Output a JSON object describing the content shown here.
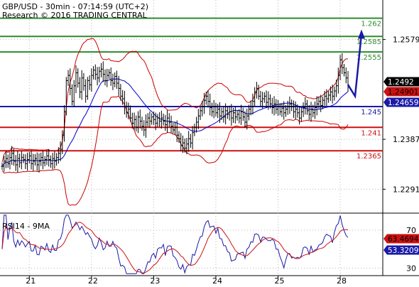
{
  "header": {
    "line1": "GBP/USD - 30min - 07:14:59 (UTC+2)",
    "line2": "Research © 2016 TRADING CENTRAL"
  },
  "colors": {
    "price": "#000000",
    "bollinger": "#cc0000",
    "moving_average": "#0000cc",
    "resistance_green": "#2e8b2e",
    "support_blue": "#1a1aa6",
    "support_red": "#cc1111",
    "forecast_arrow": "#1a1aa6",
    "rsi_line": "#1a1aa6",
    "rsi_signal": "#cc1111",
    "grid": "#b8b8b8"
  },
  "chart_data": [
    {
      "type": "candlestick",
      "pair": "GBP/USD",
      "timeframe": "30min",
      "ylim": [
        1.2245,
        1.2655
      ],
      "y_ticks": [
        "1.2579",
        "1.2387",
        "1.2291"
      ],
      "x_labels": [
        "21",
        "22",
        "23",
        "24",
        "25",
        "28"
      ],
      "grid": true,
      "levels": [
        {
          "value": 1.262,
          "label": "1.262",
          "color": "#2e8b2e"
        },
        {
          "value": 1.2585,
          "label": "1.2585",
          "color": "#2e8b2e"
        },
        {
          "value": 1.2555,
          "label": "1.2555",
          "color": "#2e8b2e"
        },
        {
          "value": 1.245,
          "label": "1.245",
          "color": "#1a1aa6"
        },
        {
          "value": 1.241,
          "label": "1.241",
          "color": "#cc1111"
        },
        {
          "value": 1.2365,
          "label": "1.2365",
          "color": "#cc1111"
        }
      ],
      "markers": [
        {
          "value": 1.2492,
          "label": "1.2492",
          "bg": "#000000",
          "fg": "#ffffff"
        },
        {
          "value": 1.24901,
          "label": "1.24901",
          "bg": "#cc1111",
          "fg": "#000000"
        },
        {
          "value": 1.24659,
          "label": "1.24659",
          "bg": "#1a1aa6",
          "fg": "#ffffff"
        }
      ],
      "close_prices": [
        1.2335,
        1.2345,
        1.235,
        1.234,
        1.2352,
        1.236,
        1.2345,
        1.2338,
        1.235,
        1.2342,
        1.2352,
        1.2348,
        1.234,
        1.2348,
        1.2355,
        1.234,
        1.2345,
        1.235,
        1.2338,
        1.2345,
        1.2352,
        1.2342,
        1.2348,
        1.2355,
        1.2348,
        1.234,
        1.235,
        1.2345,
        1.2352,
        1.236,
        1.2368,
        1.2395,
        1.244,
        1.25,
        1.251,
        1.2485,
        1.246,
        1.249,
        1.2515,
        1.2495,
        1.2478,
        1.2505,
        1.249,
        1.247,
        1.25,
        1.2492,
        1.251,
        1.252,
        1.2512,
        1.2505,
        1.2518,
        1.2522,
        1.2512,
        1.25,
        1.251,
        1.2515,
        1.25,
        1.2495,
        1.2508,
        1.2495,
        1.2485,
        1.247,
        1.2465,
        1.245,
        1.2438,
        1.2445,
        1.2428,
        1.2418,
        1.2425,
        1.241,
        1.243,
        1.2422,
        1.2412,
        1.2405,
        1.242,
        1.2428,
        1.2422,
        1.243,
        1.2425,
        1.2418,
        1.2428,
        1.2422,
        1.2428,
        1.2422,
        1.2415,
        1.2428,
        1.242,
        1.2412,
        1.2405,
        1.241,
        1.2395,
        1.2388,
        1.2375,
        1.238,
        1.237,
        1.2378,
        1.2388,
        1.238,
        1.24,
        1.241,
        1.242,
        1.2432,
        1.2442,
        1.245,
        1.2462,
        1.247,
        1.246,
        1.2448,
        1.244,
        1.245,
        1.2438,
        1.2445,
        1.2432,
        1.244,
        1.243,
        1.2442,
        1.2435,
        1.244,
        1.2428,
        1.2438,
        1.243,
        1.2435,
        1.2428,
        1.244,
        1.243,
        1.242,
        1.2432,
        1.2445,
        1.245,
        1.246,
        1.2478,
        1.2485,
        1.247,
        1.246,
        1.2465,
        1.247,
        1.2458,
        1.2465,
        1.2455,
        1.2448,
        1.2455,
        1.2445,
        1.245,
        1.244,
        1.2447,
        1.2438,
        1.2445,
        1.245,
        1.2455,
        1.245,
        1.244,
        1.2445,
        1.2438,
        1.2428,
        1.244,
        1.2448,
        1.2455,
        1.2442,
        1.2435,
        1.2445,
        1.2438,
        1.2448,
        1.2455,
        1.246,
        1.2452,
        1.2462,
        1.247,
        1.2465,
        1.2472,
        1.2478,
        1.247,
        1.248,
        1.249,
        1.251,
        1.254,
        1.2525,
        1.2515,
        1.2505,
        1.2492
      ],
      "forecast_path": [
        [
          1.2492,
          1.2492
        ],
        [
          1.247,
          1.247
        ],
        [
          1.259,
          1.259
        ]
      ]
    },
    {
      "type": "line",
      "title": "RSI14 - 9MA",
      "ylim": [
        22,
        88
      ],
      "y_ticks": [
        "70",
        "30"
      ],
      "markers": [
        {
          "value": 63.4694,
          "label": "63.4694",
          "bg": "#cc1111",
          "fg": "#000000"
        },
        {
          "value": 53.3209,
          "label": "53.3209",
          "bg": "#1a1aa6",
          "fg": "#ffffff"
        }
      ]
    }
  ]
}
